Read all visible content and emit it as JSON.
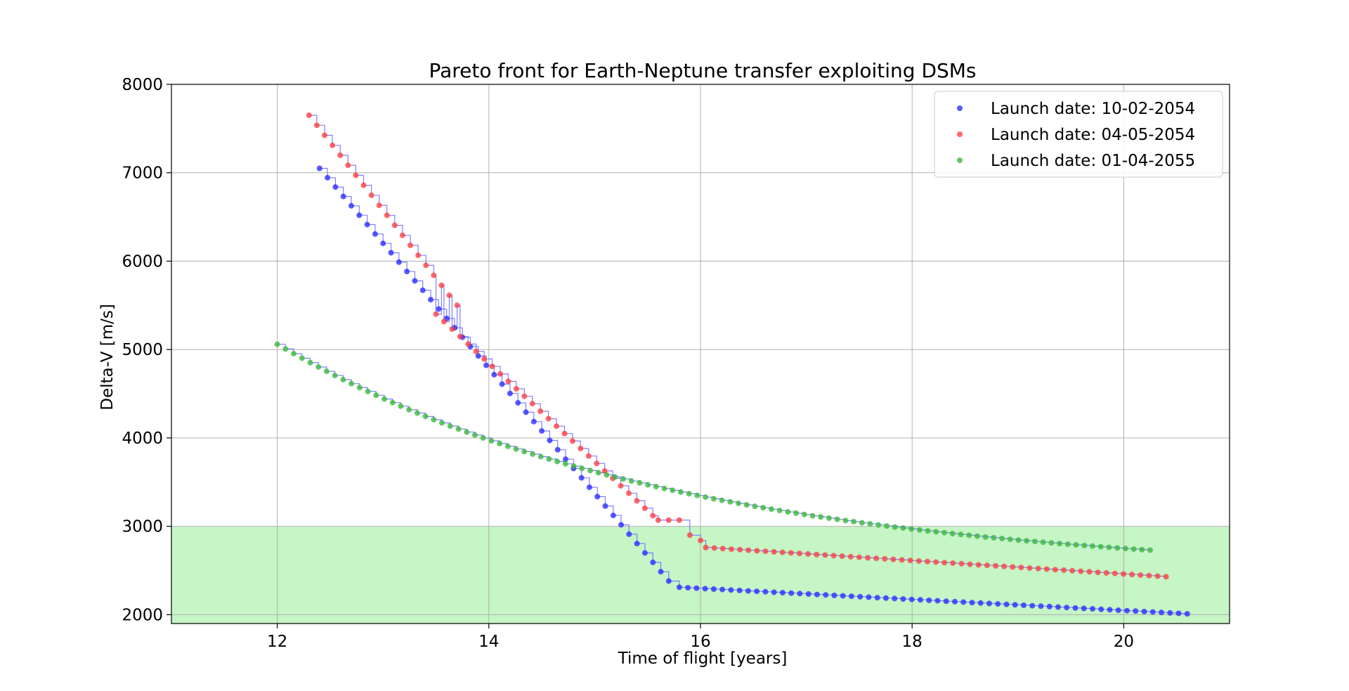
{
  "chart_data": {
    "type": "scatter",
    "title": "Pareto front for Earth-Neptune transfer exploiting DSMs",
    "xlabel": "Time of flight [years]",
    "ylabel": "Delta-V [m/s]",
    "xlim": [
      11,
      21
    ],
    "ylim": [
      1900,
      8000
    ],
    "xticks": [
      12,
      14,
      16,
      18,
      20
    ],
    "yticks": [
      2000,
      3000,
      4000,
      5000,
      6000,
      7000,
      8000
    ],
    "grid": true,
    "legend_position": "top-right",
    "shaded_region": {
      "y_from": 1900,
      "y_to": 3000,
      "color": "#c6f5c6"
    },
    "step_line_color": "#6a6aff",
    "series": [
      {
        "name": "Launch date: 10-02-2054",
        "color": "#2a2aff",
        "segments": [
          {
            "x_from": 12.4,
            "x_to": 15.7,
            "y_from": 7050,
            "y_to": 2380,
            "n": 45
          },
          {
            "x_from": 15.8,
            "x_to": 20.6,
            "y_from": 2310,
            "y_to": 2010,
            "n": 60
          }
        ]
      },
      {
        "name": "Launch date: 04-05-2054",
        "color": "#ff3d3d",
        "segments": [
          {
            "x_from": 12.3,
            "x_to": 13.7,
            "y_from": 7650,
            "y_to": 5500,
            "n": 20
          },
          {
            "x_from": 13.5,
            "x_to": 15.55,
            "y_from": 5400,
            "y_to": 3120,
            "n": 28
          },
          {
            "x_from": 15.6,
            "x_to": 15.8,
            "y_from": 3070,
            "y_to": 3070,
            "n": 3
          },
          {
            "x_from": 15.9,
            "x_to": 16.0,
            "y_from": 2900,
            "y_to": 2840,
            "n": 2
          },
          {
            "x_from": 16.05,
            "x_to": 20.4,
            "y_from": 2760,
            "y_to": 2430,
            "n": 55
          }
        ]
      },
      {
        "name": "Launch date: 01-04-2055",
        "color": "#3ab83a",
        "segments": [
          {
            "x_from": 12.0,
            "x_to": 20.25,
            "y_from": 5060,
            "y_to": 2730,
            "n": 107,
            "curve": 0.6
          }
        ]
      }
    ]
  }
}
